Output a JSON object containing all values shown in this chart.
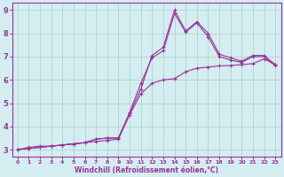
{
  "xlabel": "Windchill (Refroidissement éolien,°C)",
  "bg_color": "#d4edf0",
  "grid_color": "#aacccc",
  "line_color": "#993399",
  "xlim": [
    -0.5,
    23.5
  ],
  "ylim": [
    2.7,
    9.3
  ],
  "xticks": [
    0,
    1,
    2,
    3,
    4,
    5,
    6,
    7,
    8,
    9,
    10,
    11,
    12,
    13,
    14,
    15,
    16,
    17,
    18,
    19,
    20,
    21,
    22,
    23
  ],
  "yticks": [
    3,
    4,
    5,
    6,
    7,
    8,
    9
  ],
  "line1_x": [
    0,
    1,
    2,
    3,
    4,
    5,
    6,
    7,
    8,
    9,
    10,
    11,
    12,
    13,
    14,
    15,
    16,
    17,
    18,
    19,
    20,
    21,
    22,
    23
  ],
  "line1_y": [
    3.0,
    3.1,
    3.15,
    3.15,
    3.2,
    3.25,
    3.3,
    3.35,
    3.4,
    3.45,
    4.5,
    5.4,
    5.85,
    6.0,
    6.05,
    6.35,
    6.5,
    6.55,
    6.6,
    6.62,
    6.65,
    6.7,
    6.9,
    6.65
  ],
  "line2_x": [
    0,
    1,
    2,
    3,
    4,
    5,
    6,
    7,
    8,
    9,
    10,
    11,
    12,
    13,
    14,
    15,
    16,
    17,
    18,
    19,
    20,
    21,
    22,
    23
  ],
  "line2_y": [
    3.0,
    3.05,
    3.1,
    3.15,
    3.2,
    3.25,
    3.3,
    3.45,
    3.5,
    3.5,
    4.6,
    5.85,
    6.95,
    7.25,
    8.85,
    8.05,
    8.45,
    7.85,
    7.0,
    6.85,
    6.75,
    7.0,
    7.0,
    6.6
  ],
  "line3_x": [
    0,
    1,
    2,
    3,
    4,
    5,
    6,
    7,
    8,
    9,
    10,
    11,
    12,
    13,
    14,
    15,
    16,
    17,
    18,
    19,
    20,
    21,
    22,
    23
  ],
  "line3_y": [
    3.0,
    3.05,
    3.1,
    3.15,
    3.2,
    3.25,
    3.3,
    3.45,
    3.5,
    3.5,
    4.55,
    5.6,
    7.05,
    7.4,
    9.0,
    8.1,
    8.5,
    8.0,
    7.1,
    6.95,
    6.8,
    7.05,
    7.05,
    6.65
  ],
  "marker": "+",
  "markersize": 3,
  "linewidth": 0.8
}
